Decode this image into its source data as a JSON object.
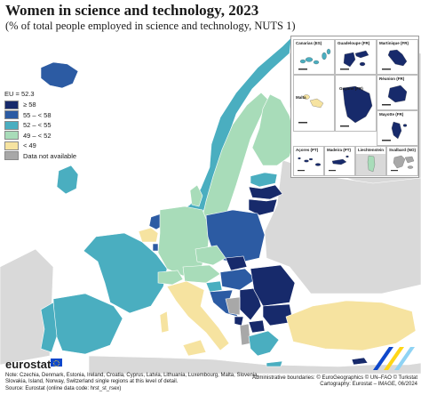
{
  "title": "Women in science and technology, 2023",
  "subtitle": "(% of total people employed in science and technology, NUTS 1)",
  "legend": {
    "eu_label": "EU = 52.3",
    "classes": [
      {
        "label": "≥ 58",
        "color": "#172a6b"
      },
      {
        "label": "55 – < 58",
        "color": "#2c5ba3"
      },
      {
        "label": "52 – < 55",
        "color": "#4aaec0"
      },
      {
        "label": "49 – < 52",
        "color": "#a8dcb9"
      },
      {
        "label": "< 49",
        "color": "#f6e3a0"
      },
      {
        "label": "Data not available",
        "color": "#a8a8a8"
      }
    ]
  },
  "colors": {
    "sea": "#ffffff",
    "non_eu_land": "#d9d9d9",
    "border": "#ffffff",
    "frame": "#9a9a9a"
  },
  "insets": [
    {
      "name": "Canarias (ES)",
      "class": 2
    },
    {
      "name": "Guadeloupe (FR)",
      "class": 0
    },
    {
      "name": "Martinique (FR)",
      "class": 0
    },
    {
      "name": "Guyane (FR)",
      "class": 0
    },
    {
      "name": "Réunion (FR)",
      "class": 0
    },
    {
      "name": "Malta",
      "class": 4
    },
    {
      "name": "Mayotte (FR)",
      "class": 0
    },
    {
      "name": "Açores (PT)",
      "class": 0
    },
    {
      "name": "Madeira (PT)",
      "class": 0
    },
    {
      "name": "Liechtenstein",
      "class": 3
    },
    {
      "name": "Svalbard (NO)",
      "class": 5
    }
  ],
  "regions": [
    {
      "name": "Iceland",
      "class": 1
    },
    {
      "name": "Norway",
      "class": 2
    },
    {
      "name": "Sweden",
      "class": 3
    },
    {
      "name": "Finland",
      "class": 3
    },
    {
      "name": "Estonia",
      "class": 2
    },
    {
      "name": "Latvia",
      "class": 0
    },
    {
      "name": "Lithuania",
      "class": 0
    },
    {
      "name": "Ireland",
      "class": 2
    },
    {
      "name": "Denmark",
      "class": 3
    },
    {
      "name": "Netherlands",
      "class": 1
    },
    {
      "name": "Belgium",
      "class": 4
    },
    {
      "name": "Luxembourg",
      "class": 1
    },
    {
      "name": "Germany",
      "class": 3
    },
    {
      "name": "Poland",
      "class": 1
    },
    {
      "name": "France",
      "class": 2
    },
    {
      "name": "Spain",
      "class": 2
    },
    {
      "name": "Portugal",
      "class": 2
    },
    {
      "name": "Switzerland",
      "class": 3
    },
    {
      "name": "Austria",
      "class": 3
    },
    {
      "name": "Italy",
      "class": 4
    },
    {
      "name": "Czechia",
      "class": 3
    },
    {
      "name": "Slovakia",
      "class": 0
    },
    {
      "name": "Hungary",
      "class": 1
    },
    {
      "name": "Slovenia",
      "class": 2
    },
    {
      "name": "Croatia",
      "class": 1
    },
    {
      "name": "Serbia",
      "class": 0
    },
    {
      "name": "Bosnia and Herzegovina",
      "class": 5
    },
    {
      "name": "Montenegro",
      "class": 0
    },
    {
      "name": "North Macedonia",
      "class": 0
    },
    {
      "name": "Albania",
      "class": 5
    },
    {
      "name": "Romania",
      "class": 0
    },
    {
      "name": "Bulgaria",
      "class": 0
    },
    {
      "name": "Greece",
      "class": 2
    },
    {
      "name": "Türkiye",
      "class": 4
    },
    {
      "name": "Cyprus",
      "class": 0
    }
  ],
  "branding": {
    "logo": "eurostat"
  },
  "note": "Note: Czechia, Denmark, Estonia, Ireland, Croatia, Cyprus, Latvia, Lithuania, Luxembourg, Malta, Slovenia, Slovakia, Island, Norway, Switzerland single regions at this level of detail.",
  "source": "Source: Eurostat (online data code: hrst_st_rsex)",
  "credits": {
    "line1": "Administrative boundaries: © EuroGeographics © UN–FAO © Turkstat",
    "line2": "Cartography: Eurostat – IMAGE, 06/2024"
  }
}
